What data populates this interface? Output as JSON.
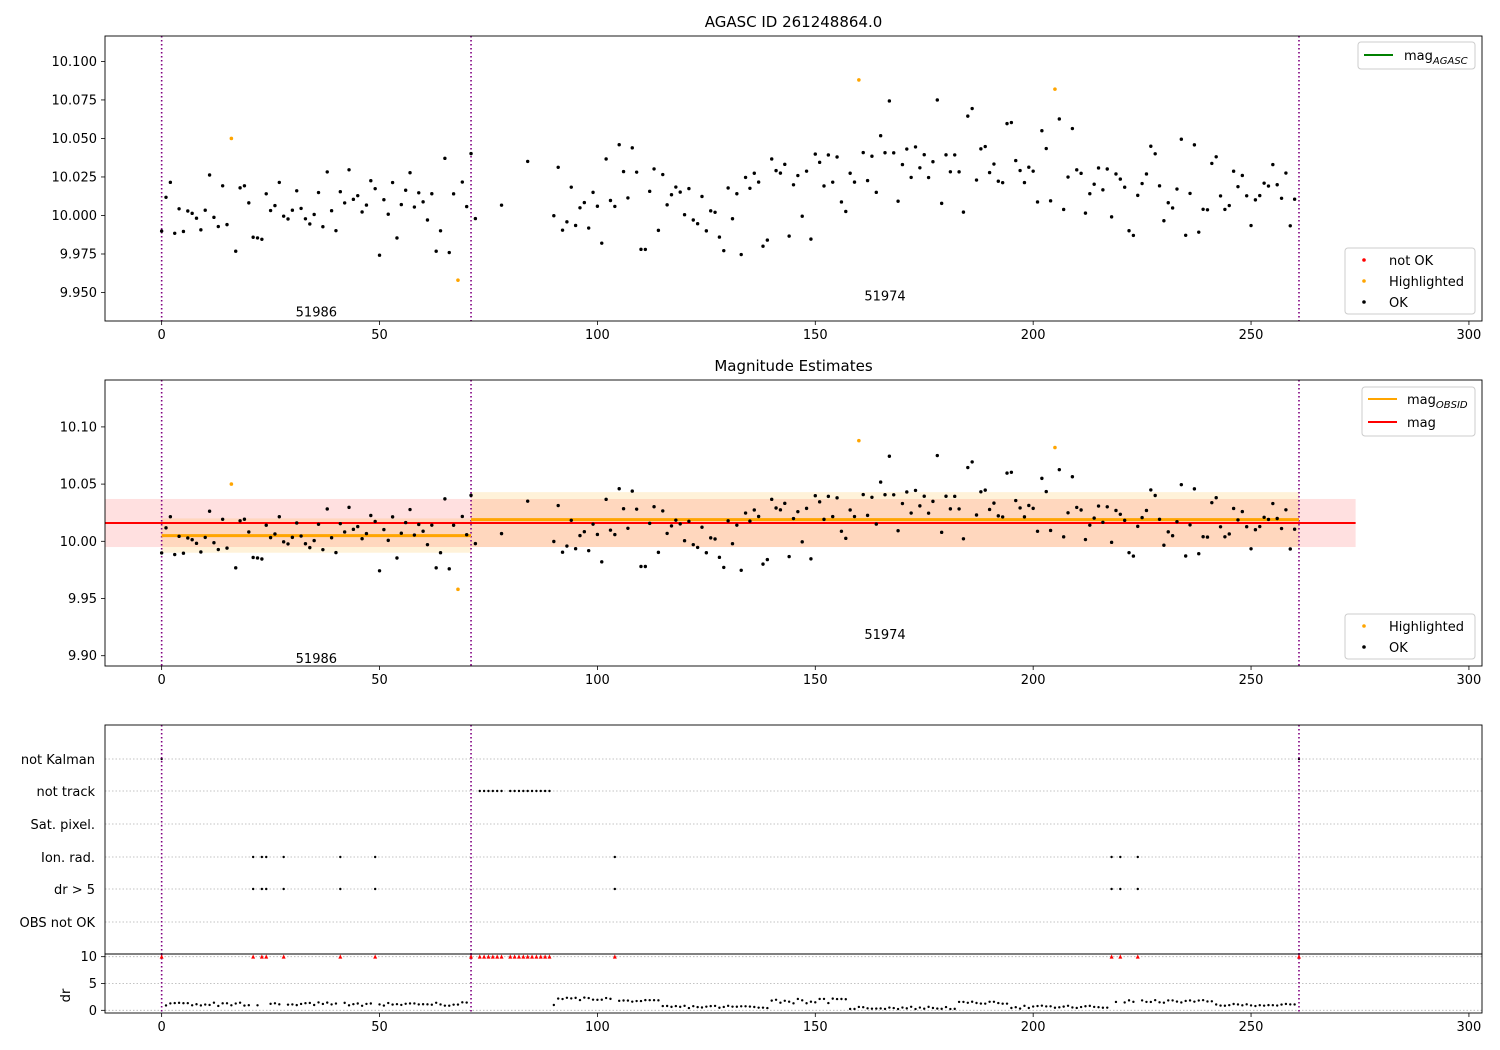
{
  "chart_data": [
    {
      "type": "scatter",
      "title": "AGASC ID 261248864.0",
      "xlim": [
        -13,
        303
      ],
      "ylim": [
        9.9315,
        10.1165
      ],
      "xticks": [
        0,
        50,
        100,
        150,
        200,
        250,
        300
      ],
      "yticks": [
        9.95,
        9.975,
        10.0,
        10.025,
        10.05,
        10.075,
        10.1
      ],
      "ytick_labels": [
        "9.950",
        "9.975",
        "10.000",
        "10.025",
        "10.050",
        "10.075",
        "10.100"
      ],
      "obsid_boundaries": [
        0,
        71,
        261
      ],
      "obsid_labels": [
        {
          "text": "51986",
          "x": 35.5,
          "y": 9.937
        },
        {
          "text": "51974",
          "x": 166,
          "y": 9.9475
        }
      ],
      "legend_lines": [
        {
          "label_main": "mag",
          "label_sub": "AGASC",
          "color": "#008000"
        }
      ],
      "legend_markers": [
        {
          "label": "not OK",
          "color": "#ff0000"
        },
        {
          "label": "Highlighted",
          "color": "#ffa500"
        },
        {
          "label": "OK",
          "color": "#000000"
        }
      ],
      "series": [
        {
          "name": "Highlighted",
          "color": "#ffa500",
          "x": [
            16,
            68,
            160,
            205
          ],
          "y": [
            10.05,
            9.958,
            10.088,
            10.082
          ]
        }
      ]
    },
    {
      "type": "scatter",
      "title": "Magnitude Estimates",
      "xlim": [
        -13,
        303
      ],
      "ylim": [
        9.891,
        10.141
      ],
      "xticks": [
        0,
        50,
        100,
        150,
        200,
        250,
        300
      ],
      "yticks": [
        9.9,
        9.95,
        10.0,
        10.05,
        10.1
      ],
      "ytick_labels": [
        "9.90",
        "9.95",
        "10.00",
        "10.05",
        "10.10"
      ],
      "obsid_boundaries": [
        0,
        71,
        261
      ],
      "obsid_labels": [
        {
          "text": "51986",
          "x": 35.5,
          "y": 9.897
        },
        {
          "text": "51974",
          "x": 166,
          "y": 9.918
        }
      ],
      "legend_lines": [
        {
          "label_main": "mag",
          "label_sub": "OBSID",
          "color": "#ffa500"
        },
        {
          "label_main": "mag",
          "label_sub": "",
          "color": "#ff0000"
        }
      ],
      "legend_markers": [
        {
          "label": "Highlighted",
          "color": "#ffa500"
        },
        {
          "label": "OK",
          "color": "#000000"
        }
      ],
      "mag_line": {
        "value": 10.016,
        "band": [
          9.995,
          10.037
        ],
        "x_range": [
          -13,
          274
        ]
      },
      "obsid_segments": [
        {
          "x": [
            0,
            71
          ],
          "value": 10.005,
          "band": [
            9.99,
            10.02
          ]
        },
        {
          "x": [
            71,
            261
          ],
          "value": 10.019,
          "band": [
            9.995,
            10.043
          ]
        }
      ],
      "series": [
        {
          "name": "Highlighted",
          "color": "#ffa500",
          "x": [
            16,
            68,
            160,
            205
          ],
          "y": [
            10.05,
            9.958,
            10.088,
            10.082
          ]
        }
      ]
    },
    {
      "type": "scatter",
      "xlim": [
        -13,
        303
      ],
      "categories": [
        "not Kalman",
        "not track",
        "Sat. pixel.",
        "Ion. rad.",
        "dr > 5",
        "OBS not OK"
      ],
      "obsid_boundaries": [
        0,
        71,
        261
      ],
      "flags": {
        "not Kalman": [
          0,
          261
        ],
        "not track": [
          73,
          74,
          75,
          76,
          77,
          78,
          80,
          81,
          82,
          83,
          84,
          85,
          86,
          87,
          88,
          89
        ],
        "Sat. pixel.": [],
        "Ion. rad.": [
          21,
          23,
          24,
          28,
          41,
          49,
          104,
          218,
          220,
          224
        ],
        "dr > 5": [
          21,
          23,
          24,
          28,
          41,
          49,
          104,
          218,
          220,
          224
        ],
        "OBS not OK": []
      }
    },
    {
      "type": "scatter",
      "ylabel": "dr",
      "xlim": [
        -13,
        303
      ],
      "ylim": [
        -0.5,
        10.5
      ],
      "xticks": [
        0,
        50,
        100,
        150,
        200,
        250,
        300
      ],
      "yticks": [
        0,
        5,
        10
      ],
      "ytick_labels": [
        "0",
        "5",
        "10"
      ],
      "obsid_boundaries": [
        0,
        71,
        261
      ],
      "clipped_at": 10,
      "clipped_x": [
        0,
        21,
        23,
        24,
        28,
        41,
        49,
        71,
        73,
        74,
        75,
        76,
        77,
        78,
        80,
        81,
        82,
        83,
        84,
        85,
        86,
        87,
        88,
        89,
        104,
        218,
        220,
        224,
        261
      ]
    }
  ]
}
